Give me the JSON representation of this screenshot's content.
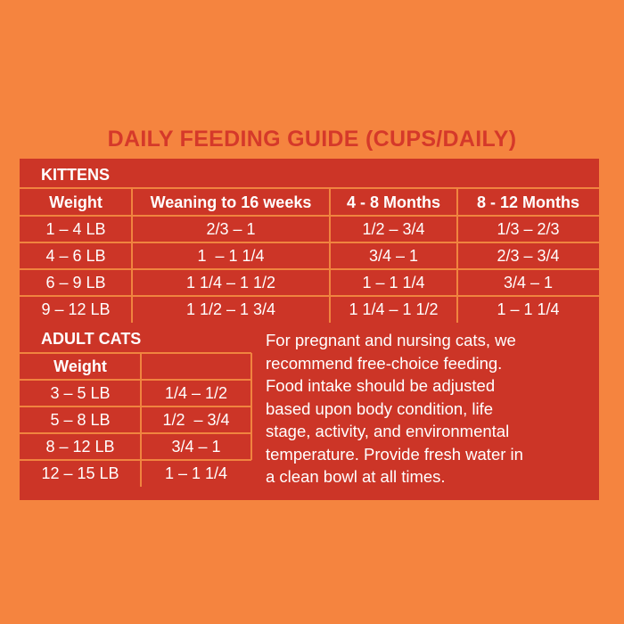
{
  "title": "DAILY FEEDING GUIDE (CUPS/DAILY)",
  "kittens": {
    "label": "KITTENS",
    "header": [
      "Weight",
      "Weaning to 16 weeks",
      "4 - 8 Months",
      "8 - 12 Months"
    ],
    "rows": [
      [
        "1 – 4 LB",
        "2/3 – 1",
        "1/2 – 3/4",
        "1/3 – 2/3"
      ],
      [
        "4 – 6 LB",
        "1  – 1 1/4",
        "3/4 – 1",
        "2/3 – 3/4"
      ],
      [
        "6 – 9 LB",
        "1 1/4 – 1 1/2",
        "1 – 1 1/4",
        "3/4 – 1"
      ],
      [
        "9 – 12 LB",
        "1 1/2 – 1 3/4",
        "1 1/4 – 1 1/2",
        "1 – 1 1/4"
      ]
    ]
  },
  "adult_cats": {
    "label": "ADULT CATS",
    "header": [
      "Weight"
    ],
    "rows": [
      [
        "3 – 5 LB",
        "1/4 – 1/2"
      ],
      [
        "5 – 8 LB",
        "1/2  – 3/4"
      ],
      [
        "8 – 12 LB",
        "3/4 – 1"
      ],
      [
        "12 – 15 LB",
        "1 – 1 1/4"
      ]
    ]
  },
  "note": {
    "lines": [
      "For pregnant and nursing cats, we",
      "recommend free-choice feeding.",
      "Food intake should be adjusted",
      "based upon body condition, life",
      "stage, activity, and environmental",
      "temperature. Provide fresh water in",
      "a clean bowl at all times."
    ]
  }
}
